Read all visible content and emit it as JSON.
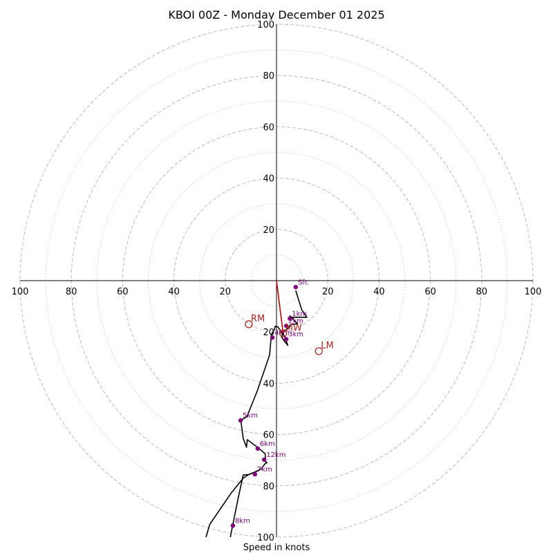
{
  "chart_data": {
    "type": "hodograph",
    "title": "KBOI 00Z - Monday December 01 2025",
    "xlabel": "Speed in knots",
    "max_speed": 100,
    "major_rings": [
      20,
      40,
      60,
      80,
      100
    ],
    "minor_rings": [
      10,
      30,
      50,
      70,
      90
    ],
    "tick_labels": [
      "20",
      "40",
      "60",
      "80",
      "100"
    ],
    "trace": [
      [
        7.5,
        -3.8
      ],
      [
        9.8,
        -11.3
      ],
      [
        11.8,
        -14.3
      ],
      [
        5.5,
        -14.3
      ],
      [
        5.2,
        -13.7
      ],
      [
        8.2,
        -16.8
      ],
      [
        5.5,
        -17.1
      ],
      [
        4.3,
        -18.8
      ],
      [
        3.2,
        -19.5
      ],
      [
        2.5,
        -20.5
      ],
      [
        2.0,
        -22.0
      ],
      [
        3.0,
        -23.5
      ],
      [
        4.4,
        -25.2
      ],
      [
        3.3,
        -22.0
      ],
      [
        0.5,
        -18.0
      ],
      [
        -0.5,
        -17.8
      ],
      [
        -0.8,
        -19.0
      ],
      [
        -2.0,
        -21.0
      ],
      [
        -2.7,
        -29.0
      ],
      [
        -7.5,
        -43.0
      ],
      [
        -11.5,
        -53.0
      ],
      [
        -13.9,
        -54.5
      ],
      [
        -13.0,
        -61.5
      ],
      [
        -11.7,
        -65.0
      ],
      [
        -11.4,
        -62.0
      ],
      [
        -7.4,
        -65.0
      ],
      [
        -4.4,
        -67.5
      ],
      [
        -4.3,
        -70.5
      ],
      [
        -3.7,
        -71.0
      ],
      [
        -4.4,
        -71.3
      ],
      [
        -6.0,
        -73.5
      ],
      [
        -8.1,
        -74.5
      ],
      [
        -10.8,
        -75.6
      ],
      [
        -13.0,
        -75.8
      ],
      [
        -15.0,
        -85.0
      ],
      [
        -17.0,
        -95.0
      ],
      [
        -18.0,
        -100.0
      ]
    ],
    "trace2": [
      [
        -6.0,
        -73.5
      ],
      [
        -8.1,
        -74.5
      ],
      [
        -10.8,
        -75.6
      ],
      [
        -13.0,
        -77.0
      ],
      [
        -17.8,
        -83.0
      ],
      [
        -26.0,
        -95.0
      ],
      [
        -27.5,
        -100.0
      ]
    ],
    "points": [
      {
        "label": "Sfc",
        "u": 7.5,
        "v": -2.5
      },
      {
        "label": "1km",
        "u": 5.2,
        "v": -14.8
      },
      {
        "label": "2km",
        "u": 3.8,
        "v": -17.6
      },
      {
        "label": "3km",
        "u": 3.8,
        "v": -22.8
      },
      {
        "label": "4km",
        "u": -1.6,
        "v": -22.2
      },
      {
        "label": "5km",
        "u": -14.0,
        "v": -54.5
      },
      {
        "label": "6km",
        "u": -7.3,
        "v": -65.5
      },
      {
        "label": "12km",
        "u": -4.8,
        "v": -69.8
      },
      {
        "label": "7km",
        "u": -8.4,
        "v": -75.5
      },
      {
        "label": "8km",
        "u": -17.0,
        "v": -95.5
      }
    ],
    "motion": [
      {
        "label": "RM",
        "u": -10.8,
        "v": -17.0
      },
      {
        "label": "LM",
        "u": 16.5,
        "v": -27.5
      },
      {
        "label": "MW",
        "u": 2.6,
        "v": -20.6
      }
    ],
    "shear_line": [
      [
        0,
        0
      ],
      [
        2.6,
        -20.6
      ]
    ]
  }
}
